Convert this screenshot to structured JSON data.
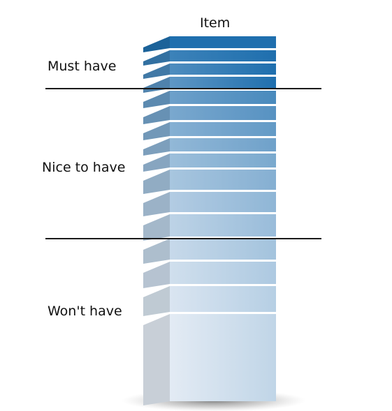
{
  "header": {
    "title": "Item"
  },
  "categories": [
    {
      "label": "Must have"
    },
    {
      "label": "Nice to have"
    },
    {
      "label": "Won't have"
    }
  ],
  "stack": {
    "item_count": 16,
    "colors": {
      "dark": "#1f6fae",
      "light": "#e3ebf4",
      "divider": "#1a1a1a"
    }
  }
}
